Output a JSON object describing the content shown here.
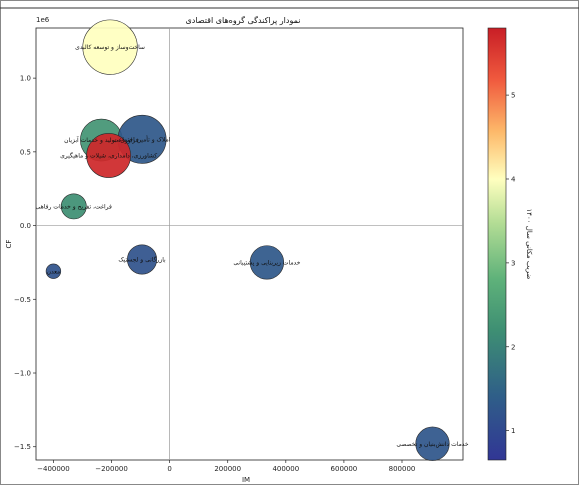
{
  "chart_data": {
    "type": "scatter",
    "title": "نمودار پراکندگی گروه‌های اقتصادی",
    "xlabel": "IM",
    "ylabel": "CF",
    "y_offset_label": "1e6",
    "xlim": [
      -460000,
      1010000
    ],
    "ylim": [
      -1590000,
      1340000
    ],
    "x_ticks": [
      -400000,
      -200000,
      0,
      200000,
      400000,
      600000,
      800000
    ],
    "x_tick_labels": [
      "−400000",
      "−200000",
      "0",
      "200000",
      "400000",
      "600000",
      "800000"
    ],
    "y_ticks": [
      -1500000,
      -1000000,
      -500000,
      0,
      500000,
      1000000
    ],
    "y_tick_labels": [
      "−1.5",
      "−1.0",
      "−0.5",
      "0.0",
      "0.5",
      "1.0"
    ],
    "reference_lines": {
      "x": 0,
      "y": 0
    },
    "colorbar": {
      "label": "ضریب مکانی سال ۱۴۰۰",
      "colormap": "RdYlGn_r-like",
      "min": 0.65,
      "max": 5.8,
      "ticks": [
        1,
        2,
        3,
        4,
        5
      ],
      "tick_labels": [
        "1",
        "2",
        "3",
        "4",
        "5"
      ]
    },
    "points": [
      {
        "label": "ساخت‌وساز و توسعه کالبدی",
        "x": -205000,
        "y": 1210000,
        "color_value": 4.0,
        "size": 2.6
      },
      {
        "label": "فراوری، تولید و خدمات آبزیان",
        "x": -235000,
        "y": 580000,
        "color_value": 2.3,
        "size": 2.0
      },
      {
        "label": "املاک و تأمین اجتماعی",
        "x": -95000,
        "y": 585000,
        "color_value": 1.3,
        "size": 2.3
      },
      {
        "label": "کشاورزی، دامداری، شیلات و ماهیگیری",
        "x": -210000,
        "y": 475000,
        "color_value": 5.7,
        "size": 2.1
      },
      {
        "label": "فراغت، تفریح و خدمات رفاهی",
        "x": -330000,
        "y": 130000,
        "color_value": 2.2,
        "size": 1.2
      },
      {
        "label": "بازرگانی و لجستیک",
        "x": -95000,
        "y": -230000,
        "color_value": 1.2,
        "size": 1.4
      },
      {
        "label": "معدن",
        "x": -400000,
        "y": -310000,
        "color_value": 1.2,
        "size": 0.7
      },
      {
        "label": "خدمات زیربنایی و پشتیبانی",
        "x": 335000,
        "y": -250000,
        "color_value": 1.3,
        "size": 1.6
      },
      {
        "label": "خدمات دانش‌بنیان و تخصصی",
        "x": 905000,
        "y": -1480000,
        "color_value": 1.25,
        "size": 1.6
      }
    ]
  }
}
